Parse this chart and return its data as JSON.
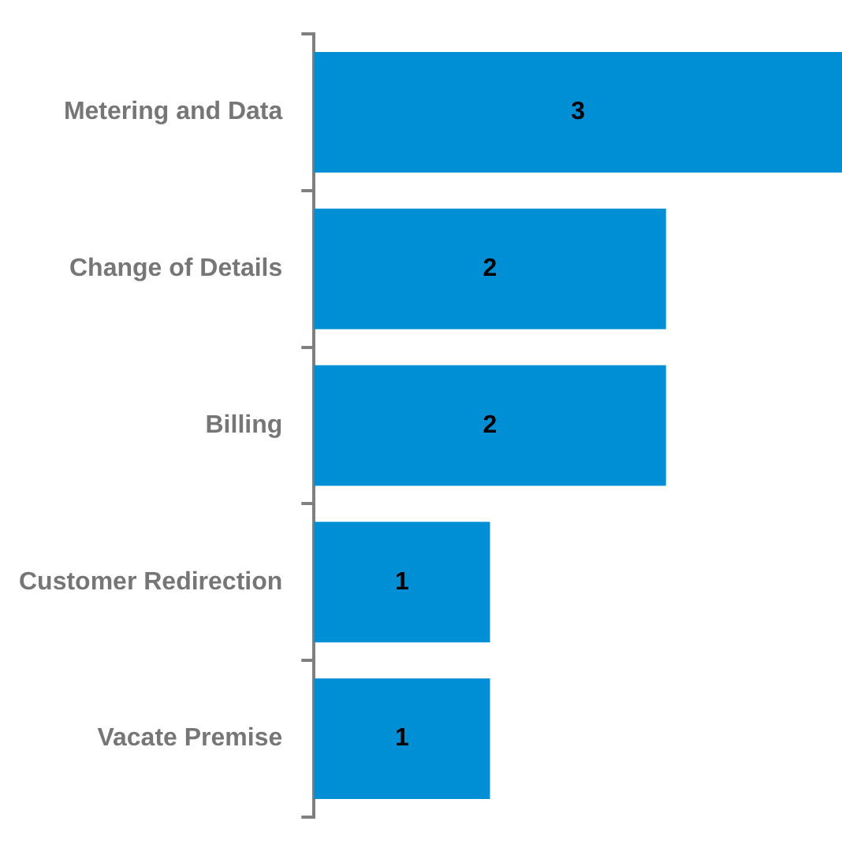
{
  "chart_data": {
    "type": "bar",
    "orientation": "horizontal",
    "categories": [
      "Metering and Data",
      "Change of Details",
      "Billing",
      "Customer Redirection",
      "Vacate Premise"
    ],
    "values": [
      3,
      2,
      2,
      1,
      1
    ],
    "color": "#008fd5",
    "data_labels": true,
    "grid": false,
    "legend": false
  }
}
